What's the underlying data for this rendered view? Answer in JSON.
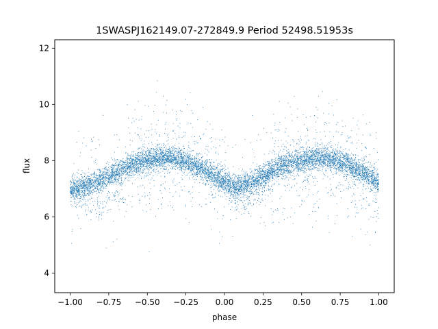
{
  "chart_data": {
    "type": "scatter",
    "title": "1SWASPJ162149.07-272849.9 Period 52498.51953s",
    "xlabel": "phase",
    "ylabel": "flux",
    "xlim": [
      -1.1,
      1.1
    ],
    "ylim": [
      3.3,
      12.3
    ],
    "xticks": [
      -1.0,
      -0.75,
      -0.5,
      -0.25,
      0.0,
      0.25,
      0.5,
      0.75,
      1.0
    ],
    "xtick_labels": [
      "−1.00",
      "−0.75",
      "−0.50",
      "−0.25",
      "0.00",
      "0.25",
      "0.50",
      "0.75",
      "1.00"
    ],
    "yticks": [
      4,
      6,
      8,
      10,
      12
    ],
    "ytick_labels": [
      "4",
      "6",
      "8",
      "10",
      "12"
    ],
    "grid": false,
    "marker_color": "#1f77b4",
    "series": [
      {
        "description": "phase-folded light curve, repeated twice (phase -1 to 1)",
        "x": [
          -1.0,
          -0.9,
          -0.8,
          -0.7,
          -0.6,
          -0.5,
          -0.4,
          -0.3,
          -0.2,
          -0.1,
          0.0,
          0.08,
          0.2,
          0.3,
          0.4,
          0.5,
          0.6,
          0.7,
          0.8,
          0.9,
          1.0
        ],
        "y": [
          7.0,
          7.1,
          7.3,
          7.6,
          7.85,
          8.0,
          8.1,
          8.05,
          7.85,
          7.55,
          7.25,
          7.05,
          7.3,
          7.6,
          7.85,
          8.0,
          8.1,
          8.05,
          7.85,
          7.55,
          7.25
        ]
      },
      {
        "description": "secondary low branch near minima",
        "x": [
          -1.0,
          -0.9,
          -0.8,
          -0.7,
          0.0,
          0.05,
          0.1,
          0.15,
          0.2,
          0.3
        ],
        "y": [
          6.8,
          6.55,
          6.3,
          6.8,
          7.0,
          6.6,
          6.5,
          6.6,
          6.8,
          7.1
        ]
      }
    ]
  }
}
